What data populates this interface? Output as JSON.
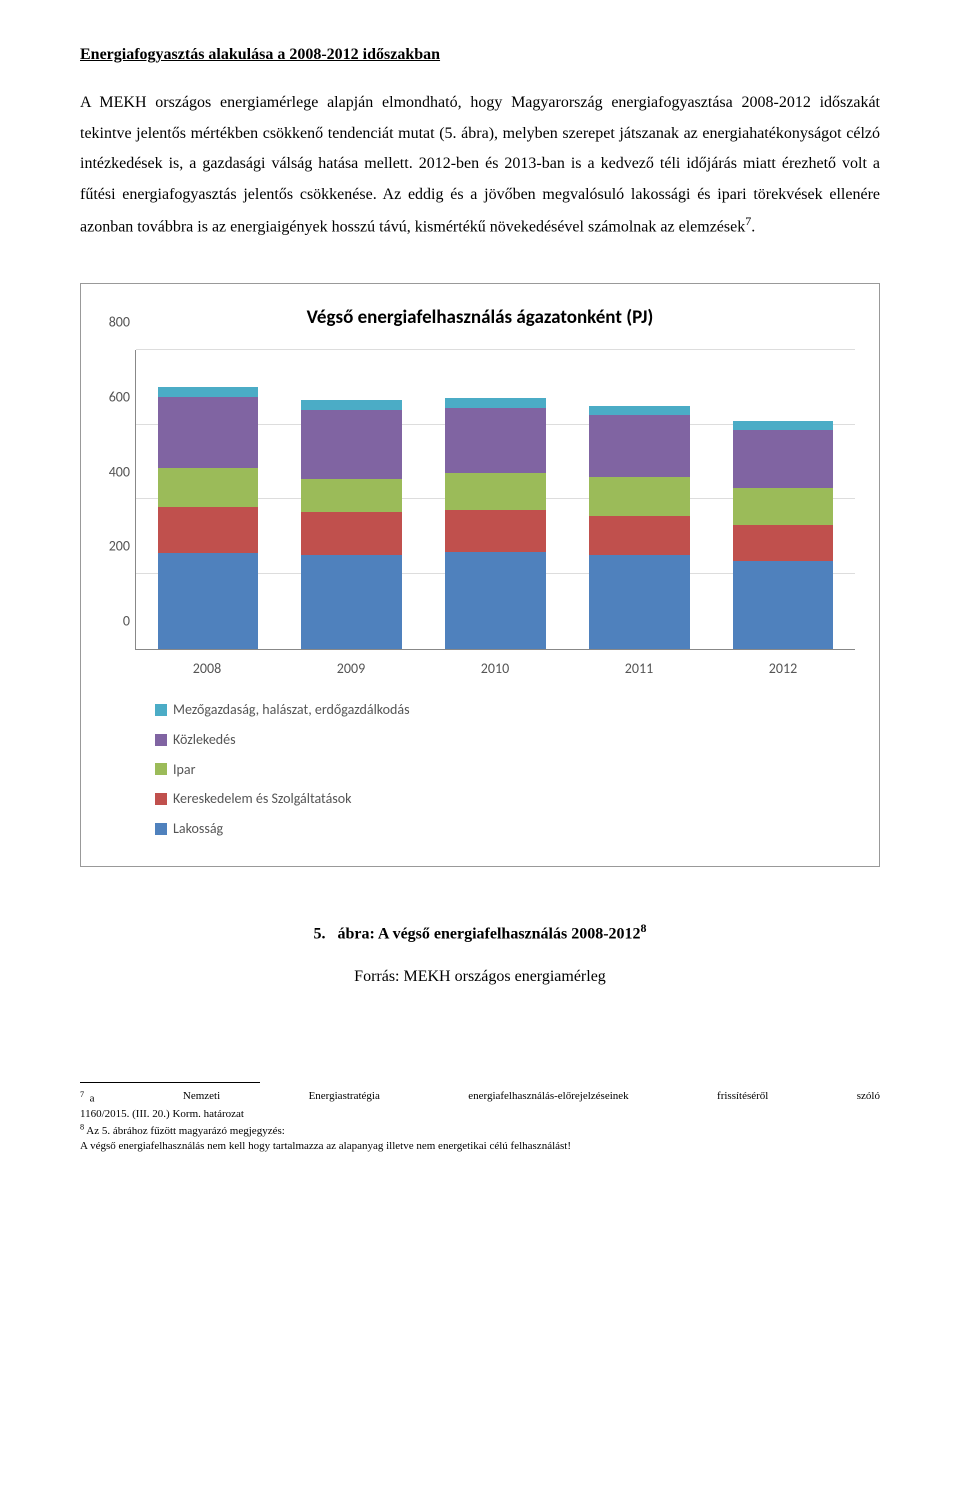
{
  "section_title": "Energiafogyasztás alakulása a 2008-2012 időszakban",
  "body_text": "A MEKH országos energiamérlege alapján elmondható, hogy Magyarország energiafogyasztása 2008-2012 időszakát tekintve jelentős mértékben csökkenő tendenciát mutat (5. ábra), melyben szerepet játszanak az energiahatékonyságot célzó intézkedések is, a gazdasági válság hatása mellett. 2012-ben és 2013-ban is a kedvező téli időjárás miatt érezhető volt a fűtési energiafogyasztás jelentős csökkenése. Az eddig és a jövőben megvalósuló lakossági és ipari törekvések ellenére azonban továbbra is az energiaigények hosszú távú, kismértékű növekedésével számolnak az elemzések",
  "body_sup": "7",
  "body_period": ".",
  "chart": {
    "title": "Végső energiafelhasználás ágazatonként (PJ)",
    "categories": [
      "2008",
      "2009",
      "2010",
      "2011",
      "2012"
    ],
    "ylim": [
      0,
      800
    ],
    "yticks": [
      0,
      200,
      400,
      600,
      800
    ],
    "series": [
      {
        "key": "lakossag",
        "label": "Lakosság",
        "color": "#4f81bd"
      },
      {
        "key": "keresk",
        "label": "Kereskedelem és Szolgáltatások",
        "color": "#c0504d"
      },
      {
        "key": "ipar",
        "label": "Ipar",
        "color": "#9bbb59"
      },
      {
        "key": "kozlekedes",
        "label": "Közlekedés",
        "color": "#8064a2"
      },
      {
        "key": "mezogazd",
        "label": "Mezőgazdaság, halászat, erdőgazdálkodás",
        "color": "#4bacc6"
      }
    ],
    "legend_order": [
      "mezogazd",
      "kozlekedes",
      "ipar",
      "keresk",
      "lakossag"
    ],
    "values": {
      "2008": {
        "lakossag": 255,
        "keresk": 125,
        "ipar": 105,
        "kozlekedes": 190,
        "mezogazd": 25
      },
      "2009": {
        "lakossag": 250,
        "keresk": 115,
        "ipar": 90,
        "kozlekedes": 185,
        "mezogazd": 25
      },
      "2010": {
        "lakossag": 260,
        "keresk": 110,
        "ipar": 100,
        "kozlekedes": 175,
        "mezogazd": 25
      },
      "2011": {
        "lakossag": 250,
        "keresk": 105,
        "ipar": 105,
        "kozlekedes": 165,
        "mezogazd": 25
      },
      "2012": {
        "lakossag": 235,
        "keresk": 95,
        "ipar": 100,
        "kozlekedes": 155,
        "mezogazd": 25
      }
    },
    "background_color": "#ffffff",
    "grid_color": "#dddddd",
    "axis_color": "#888888",
    "label_color": "#555555",
    "title_fontsize": 19,
    "label_fontsize": 14,
    "bar_width_pct": 14
  },
  "figure_caption": "5.   ábra: A végső energiafelhasználás 2008-2012",
  "figure_caption_sup": "8",
  "figure_source": "Forrás: MEKH országos energiamérleg",
  "footnote7": {
    "num": "7",
    "line1_words": [
      "a",
      "Nemzeti",
      "Energiastratégia",
      "energiafelhasználás-előrejelzéseinek",
      "frissítéséről",
      "szóló"
    ],
    "line2": "1160/2015. (III. 20.) Korm. határozat"
  },
  "footnote8": {
    "num": "8",
    "text": " Az 5. ábrához fűzött magyarázó megjegyzés:",
    "line2": "A végső energiafelhasználás nem kell hogy tartalmazza az alapanyag illetve nem energetikai célú felhasználást!"
  }
}
